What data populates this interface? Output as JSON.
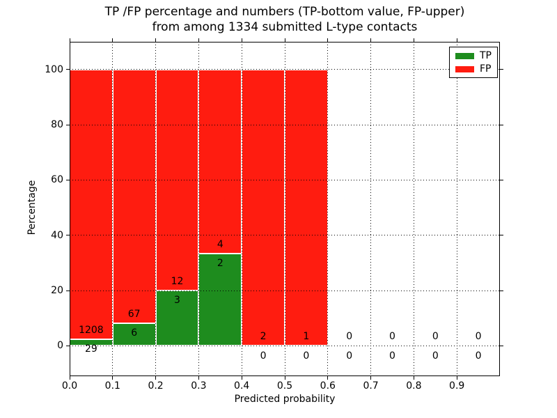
{
  "chart_data": {
    "type": "bar",
    "stacked": true,
    "title_line1": "TP /FP percentage and numbers (TP-bottom value, FP-upper)",
    "title_line2": "from among 1334 submitted L-type contacts",
    "xlabel": "Predicted probability",
    "ylabel": "Percentage",
    "xlim": [
      0.0,
      1.0
    ],
    "ylim": [
      -11,
      110
    ],
    "x_ticks": [
      "0.0",
      "0.1",
      "0.2",
      "0.3",
      "0.4",
      "0.5",
      "0.6",
      "0.7",
      "0.8",
      "0.9"
    ],
    "y_ticks": [
      0,
      20,
      40,
      60,
      80,
      100
    ],
    "bin_width": 0.1,
    "grid": true,
    "legend_position": "upper-right",
    "legend": [
      {
        "label": "TP",
        "color_key": "tp"
      },
      {
        "label": "FP",
        "color_key": "fp"
      }
    ],
    "colors": {
      "tp": "#1e8c1e",
      "fp": "#ff1c10"
    },
    "bins": [
      {
        "range": "0.0-0.1",
        "tp": 29,
        "fp": 1208
      },
      {
        "range": "0.1-0.2",
        "tp": 6,
        "fp": 67
      },
      {
        "range": "0.2-0.3",
        "tp": 3,
        "fp": 12
      },
      {
        "range": "0.3-0.4",
        "tp": 2,
        "fp": 4
      },
      {
        "range": "0.4-0.5",
        "tp": 0,
        "fp": 2
      },
      {
        "range": "0.5-0.6",
        "tp": 0,
        "fp": 1
      },
      {
        "range": "0.6-0.7",
        "tp": 0,
        "fp": 0
      },
      {
        "range": "0.7-0.8",
        "tp": 0,
        "fp": 0
      },
      {
        "range": "0.8-0.9",
        "tp": 0,
        "fp": 0
      },
      {
        "range": "0.9-1.0",
        "tp": 0,
        "fp": 0
      }
    ],
    "bar_note": "Bars normalized to 100%: green TP segment height = tp/(tp+fp)*100, red FP stacked above to 100. FP count labeled above green top, TP count below it."
  }
}
